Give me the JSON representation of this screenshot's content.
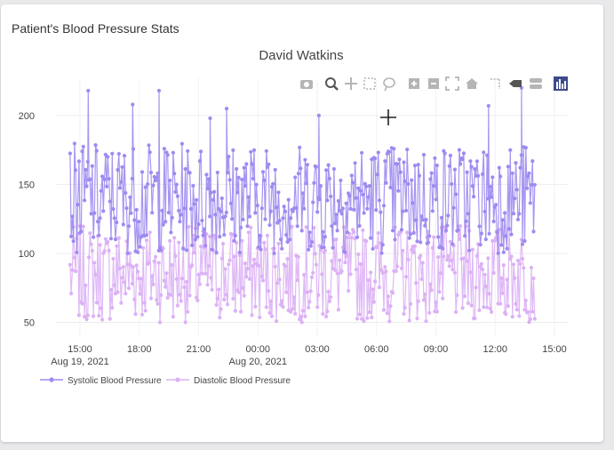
{
  "card": {
    "title": "Patient's Blood Pressure Stats"
  },
  "chart_data": {
    "type": "line",
    "title": "David Watkins",
    "xlabel": "",
    "ylabel": "",
    "x_start": "2021-08-19 14:30",
    "x_end": "2021-08-20 14:00",
    "x_tick_labels": [
      "15:00",
      "18:00",
      "21:00",
      "00:00",
      "03:00",
      "06:00",
      "09:00",
      "12:00",
      "15:00"
    ],
    "x_tick_sublabels": [
      "Aug 19, 2021",
      "",
      "",
      "Aug 20, 2021",
      "",
      "",
      "",
      "",
      ""
    ],
    "y_tick_labels": [
      "50",
      "100",
      "150",
      "200"
    ],
    "ylim": [
      40,
      227
    ],
    "grid": true,
    "legend_position": "bottom-left",
    "series": [
      {
        "name": "Systolic Blood Pressure",
        "color": "#9f8af0",
        "range": [
          100,
          180
        ],
        "spikes": [
          {
            "x": "2021-08-19 15:25",
            "y": 218
          },
          {
            "x": "2021-08-19 17:40",
            "y": 208
          },
          {
            "x": "2021-08-19 19:00",
            "y": 218
          },
          {
            "x": "2021-08-19 21:35",
            "y": 198
          },
          {
            "x": "2021-08-19 22:25",
            "y": 205
          },
          {
            "x": "2021-08-20 03:05",
            "y": 200
          },
          {
            "x": "2021-08-20 11:40",
            "y": 207
          },
          {
            "x": "2021-08-20 13:20",
            "y": 220
          }
        ]
      },
      {
        "name": "Diastolic Blood Pressure",
        "color": "#dcb1f5",
        "range": [
          50,
          120
        ],
        "spikes": []
      }
    ]
  },
  "modebar": {
    "icons": [
      "camera-icon",
      "zoom-icon",
      "pan-icon",
      "box-select-icon",
      "lasso-select-icon",
      "zoom-in-icon",
      "zoom-out-icon",
      "autoscale-icon",
      "reset-axes-icon",
      "spike-lines-icon",
      "hover-closest-icon",
      "hover-compare-icon",
      "plotly-logo-icon"
    ]
  }
}
